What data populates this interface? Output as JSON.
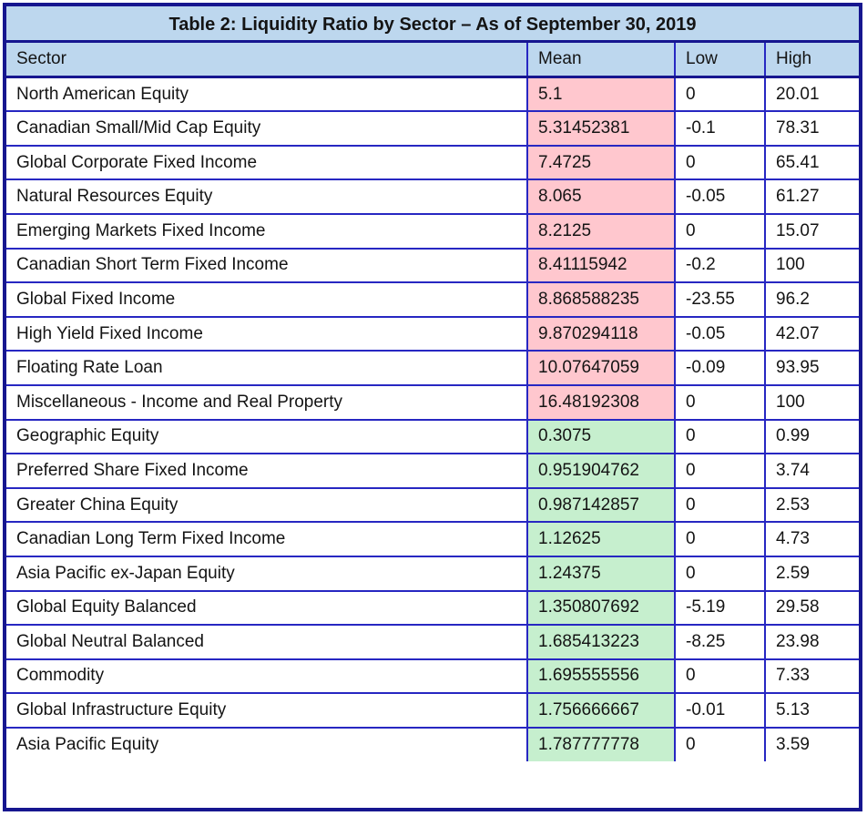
{
  "title": "Table 2: Liquidity Ratio by Sector – As of September 30, 2019",
  "columns": [
    "Sector",
    "Mean",
    "Low",
    "High"
  ],
  "colors": {
    "header_bg": "#BDD7EE",
    "border_outer": "#16168F",
    "border_inner": "#2727C2",
    "mean_pink_bg": "#FFC7CE",
    "mean_green_bg": "#C6EFCE",
    "text": "#141414"
  },
  "rows": [
    {
      "sector": "North American Equity",
      "mean": "5.1",
      "low": "0",
      "high": "20.01",
      "mean_tone": "pink"
    },
    {
      "sector": "Canadian Small/Mid Cap Equity",
      "mean": "5.31452381",
      "low": "-0.1",
      "high": "78.31",
      "mean_tone": "pink"
    },
    {
      "sector": "Global Corporate Fixed Income",
      "mean": "7.4725",
      "low": "0",
      "high": "65.41",
      "mean_tone": "pink"
    },
    {
      "sector": "Natural Resources Equity",
      "mean": "8.065",
      "low": "-0.05",
      "high": "61.27",
      "mean_tone": "pink"
    },
    {
      "sector": "Emerging Markets Fixed Income",
      "mean": "8.2125",
      "low": "0",
      "high": "15.07",
      "mean_tone": "pink"
    },
    {
      "sector": "Canadian Short Term Fixed Income",
      "mean": "8.41115942",
      "low": "-0.2",
      "high": "100",
      "mean_tone": "pink"
    },
    {
      "sector": "Global Fixed Income",
      "mean": "8.868588235",
      "low": "-23.55",
      "high": "96.2",
      "mean_tone": "pink"
    },
    {
      "sector": "High Yield Fixed Income",
      "mean": "9.870294118",
      "low": "-0.05",
      "high": "42.07",
      "mean_tone": "pink"
    },
    {
      "sector": "Floating Rate Loan",
      "mean": "10.07647059",
      "low": "-0.09",
      "high": "93.95",
      "mean_tone": "pink"
    },
    {
      "sector": "Miscellaneous - Income and Real Property",
      "mean": "16.48192308",
      "low": "0",
      "high": "100",
      "mean_tone": "pink"
    },
    {
      "sector": "Geographic Equity",
      "mean": "0.3075",
      "low": "0",
      "high": "0.99",
      "mean_tone": "green"
    },
    {
      "sector": "Preferred Share Fixed Income",
      "mean": "0.951904762",
      "low": "0",
      "high": "3.74",
      "mean_tone": "green"
    },
    {
      "sector": "Greater China Equity",
      "mean": "0.987142857",
      "low": "0",
      "high": "2.53",
      "mean_tone": "green"
    },
    {
      "sector": "Canadian Long Term Fixed Income",
      "mean": "1.12625",
      "low": "0",
      "high": "4.73",
      "mean_tone": "green"
    },
    {
      "sector": "Asia Pacific ex-Japan Equity",
      "mean": "1.24375",
      "low": "0",
      "high": "2.59",
      "mean_tone": "green"
    },
    {
      "sector": "Global Equity Balanced",
      "mean": "1.350807692",
      "low": "-5.19",
      "high": "29.58",
      "mean_tone": "green"
    },
    {
      "sector": "Global Neutral Balanced",
      "mean": "1.685413223",
      "low": "-8.25",
      "high": "23.98",
      "mean_tone": "green"
    },
    {
      "sector": "Commodity",
      "mean": "1.695555556",
      "low": "0",
      "high": "7.33",
      "mean_tone": "green"
    },
    {
      "sector": "Global Infrastructure Equity",
      "mean": "1.756666667",
      "low": "-0.01",
      "high": "5.13",
      "mean_tone": "green"
    },
    {
      "sector": "Asia Pacific Equity",
      "mean": "1.787777778",
      "low": "0",
      "high": "3.59",
      "mean_tone": "green"
    }
  ]
}
